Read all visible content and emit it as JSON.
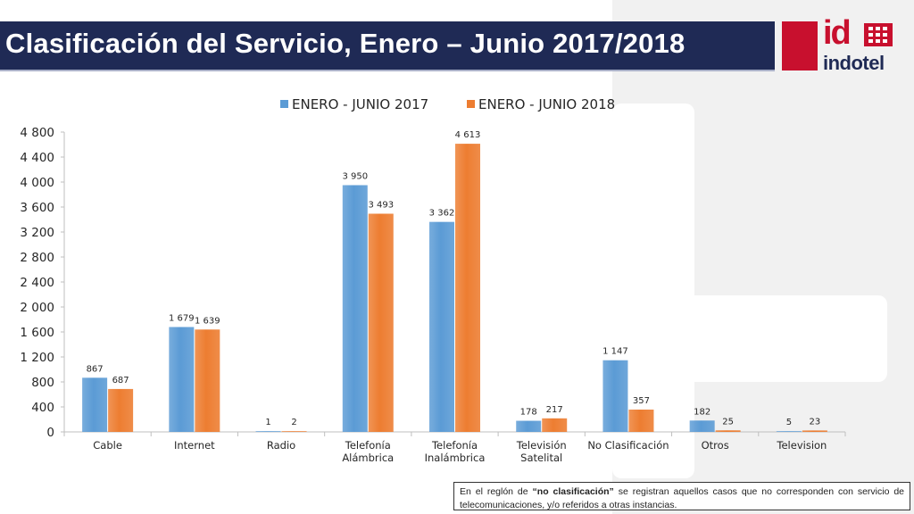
{
  "header": {
    "title": "Clasificación del Servicio, Enero – Junio 2017/2018"
  },
  "logo": {
    "mark": "id",
    "word": "indotel",
    "icon": "indotel-logo-icon"
  },
  "colors": {
    "title_bar": "#1f2a55",
    "series_2017": "#5b9bd5",
    "series_2018": "#ed7d31",
    "brand_red": "#c8102e"
  },
  "chart_data": {
    "type": "bar",
    "categories": [
      [
        "Cable"
      ],
      [
        "Internet"
      ],
      [
        "Radio"
      ],
      [
        "Telefonía",
        "Alámbrica"
      ],
      [
        "Telefonía",
        "Inalámbrica"
      ],
      [
        "Televisión",
        "Satelital"
      ],
      [
        "No Clasificación"
      ],
      [
        "Otros"
      ],
      [
        "Television"
      ]
    ],
    "series": [
      {
        "name": "ENERO - JUNIO 2017",
        "color": "#5b9bd5",
        "values": [
          867,
          1679,
          1,
          3950,
          3362,
          178,
          1147,
          182,
          5
        ],
        "labels": [
          "867",
          "1 679",
          "1",
          "3 950",
          "3 362",
          "178",
          "1 147",
          "182",
          "5"
        ]
      },
      {
        "name": "ENERO - JUNIO 2018",
        "color": "#ed7d31",
        "values": [
          687,
          1639,
          2,
          3493,
          4613,
          217,
          357,
          25,
          23
        ],
        "labels": [
          "687",
          "1 639",
          "2",
          "3 493",
          "4 613",
          "217",
          "357",
          "25",
          "23"
        ]
      }
    ],
    "yticks": [
      "0",
      "400",
      "800",
      "1 200",
      "1 600",
      "2 000",
      "2 400",
      "2 800",
      "3 200",
      "3 600",
      "4 000",
      "4 400",
      "4 800"
    ],
    "ylim": [
      0,
      4800
    ],
    "legend_position": "top",
    "grid": false
  },
  "note": {
    "before": "En el reglón de ",
    "bold": "“no clasificación”",
    "after": " se registran aquellos casos que no corresponden con servicio de telecomunicaciones, y/o referidos a otras instancias."
  }
}
